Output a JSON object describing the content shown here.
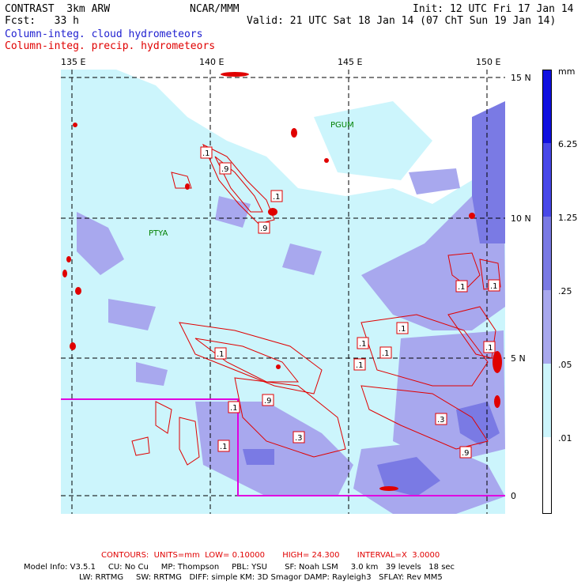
{
  "header": {
    "model": "CONTRAST  3km ARW",
    "center": "NCAR/MMM",
    "init": "Init: 12 UTC Fri 17 Jan 14",
    "fcst": "Fcst:   33 h",
    "valid": "Valid: 21 UTC Sat 18 Jan 14 (07 ChT Sun 19 Jan 14)",
    "field_blue": "Column-integ. cloud hydrometeors",
    "field_red": "Column-integ. precip. hydrometeors"
  },
  "map": {
    "lon_labels": [
      "135 E",
      "140 E",
      "145 E",
      "150 E"
    ],
    "lat_labels": [
      "15 N",
      "10 N",
      "5 N",
      "0"
    ],
    "stations": [
      "PGUM",
      "PTYA"
    ],
    "contour_labels": [
      ".1",
      ".9",
      ".1",
      ".9",
      ".1",
      ".1",
      ".1",
      ".1",
      ".1",
      ".1",
      ".1",
      ".9",
      ".1",
      ".3",
      ".1",
      ".3",
      ".9",
      ".1"
    ],
    "colors": {
      "cloud_light": "#ccf5fc",
      "cloud_mid": "#a8a8ee",
      "cloud_dark": "#7a7ae4",
      "precip": "#e00000",
      "domain_box": "#e000e0"
    }
  },
  "legend": {
    "unit": "mm",
    "labels": [
      "6.25",
      "1.25",
      ".25",
      ".05",
      ".01"
    ],
    "colors": [
      "#1010e0",
      "#4848e8",
      "#7a7ae4",
      "#a8a8ee",
      "#ccf5fc",
      "#ffffff"
    ]
  },
  "footer": {
    "contours": "CONTOURS:  UNITS=mm  LOW= 0.10000       HIGH= 24.300       INTERVAL=X  3.0000",
    "line1": "Model Info: V3.5.1     CU: No Cu     MP: Thompson     PBL: YSU       SF: Noah LSM     3.0 km   39 levels   18 sec",
    "line2": "LW: RRTMG     SW: RRTMG   DIFF: simple KM: 3D Smagor DAMP: Rayleigh3   SFLAY: Rev MM5"
  }
}
